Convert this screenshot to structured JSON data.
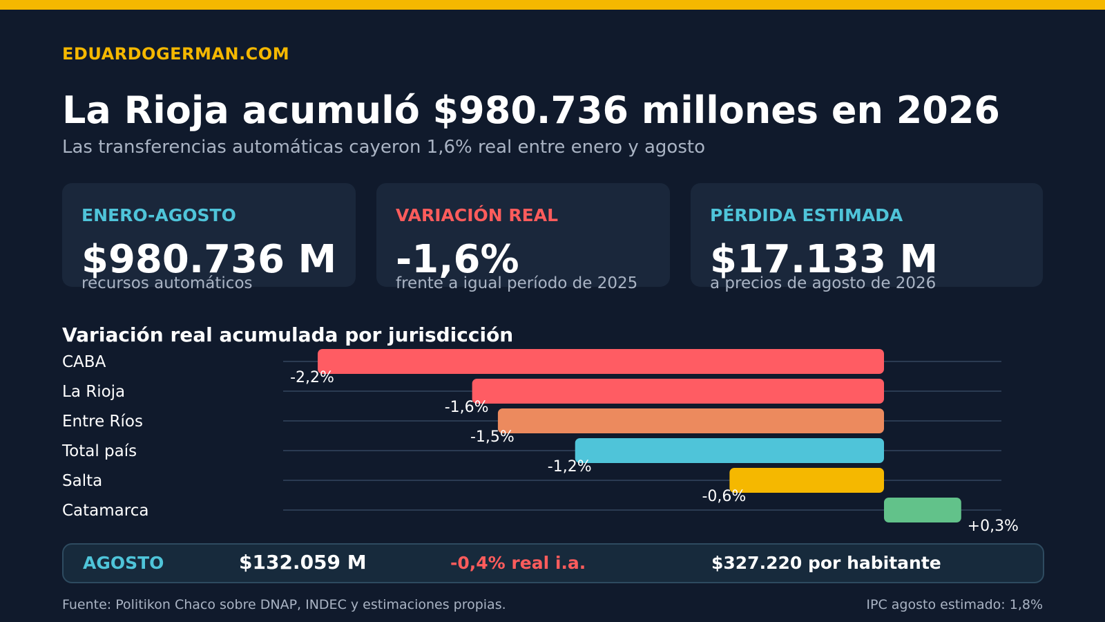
{
  "brand": "EDUARDOGERMAN.COM",
  "headline": "La Rioja acumuló $980.736 millones en 2026",
  "subheadline": "Las transferencias automáticas cayeron 1,6% real entre enero y agosto",
  "cards": [
    {
      "label": "ENERO-AGOSTO",
      "value": "$980.736 M",
      "note": "recursos automáticos",
      "color": "#4fc4d9"
    },
    {
      "label": "VARIACIÓN REAL",
      "value": "-1,6%",
      "note": "frente a igual período de 2025",
      "color": "#ff5c5c"
    },
    {
      "label": "PÉRDIDA ESTIMADA",
      "value": "$17.133 M",
      "note": "a precios de agosto de 2026",
      "color": "#4fc4d9"
    }
  ],
  "chart_data": {
    "type": "bar",
    "orientation": "horizontal",
    "title": "Variación real acumulada por jurisdicción",
    "unit": "%",
    "categories": [
      "CABA",
      "La Rioja",
      "Entre Ríos",
      "Total país",
      "Salta",
      "Catamarca"
    ],
    "values": [
      -2.2,
      -1.6,
      -1.5,
      -1.2,
      -0.6,
      0.3
    ],
    "value_labels": [
      "-2,2%",
      "-1,6%",
      "-1,5%",
      "-1,2%",
      "-0,6%",
      "+0,3%"
    ],
    "colors": [
      "#ff5c63",
      "#ff5c63",
      "#ec8a5e",
      "#4fc4d9",
      "#f5b800",
      "#62c28a"
    ],
    "xlim": [
      -2.2,
      0.3
    ],
    "grid": true
  },
  "summary": {
    "label": "AGOSTO",
    "amount": "$132.059 M",
    "variation": "-0,4% real i.a.",
    "per_capita": "$327.220 por habitante"
  },
  "footer": {
    "source": "Fuente: Politikon Chaco sobre DNAP, INDEC y estimaciones propias.",
    "ipc": "IPC agosto estimado: 1,8%"
  }
}
